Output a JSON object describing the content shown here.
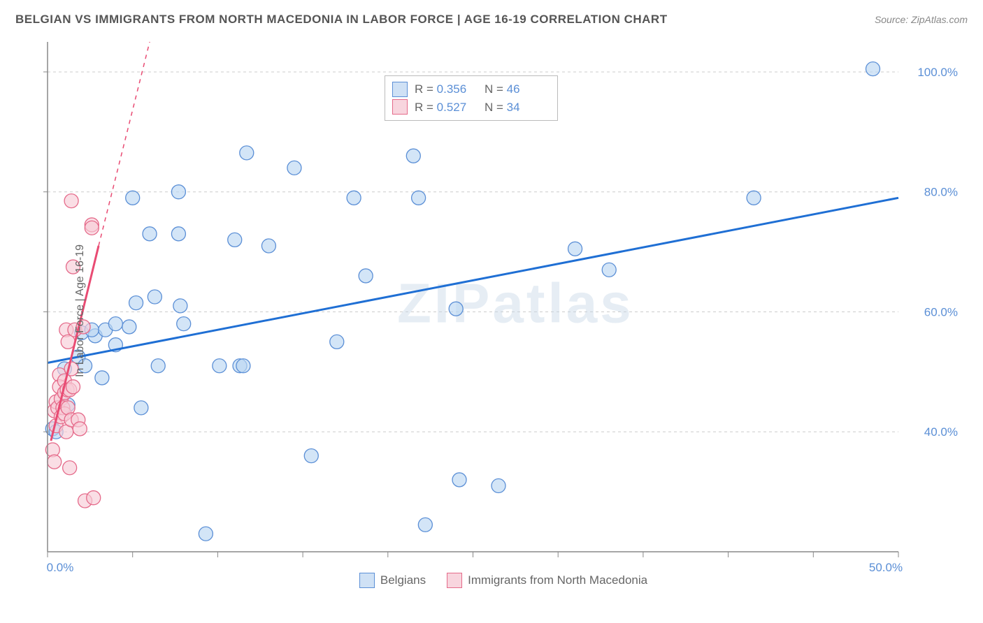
{
  "header": {
    "title": "BELGIAN VS IMMIGRANTS FROM NORTH MACEDONIA IN LABOR FORCE | AGE 16-19 CORRELATION CHART",
    "source_prefix": "Source: ",
    "source_name": "ZipAtlas.com"
  },
  "axes": {
    "ylabel": "In Labor Force | Age 16-19",
    "xlim": [
      0,
      50
    ],
    "ylim": [
      20,
      105
    ],
    "xticks": [
      0,
      5,
      10,
      15,
      20,
      25,
      30,
      35,
      40,
      45,
      50
    ],
    "xtick_labels": {
      "0": "0.0%",
      "50": "50.0%"
    },
    "yticks": [
      40,
      60,
      80,
      100
    ],
    "ytick_labels": {
      "40": "40.0%",
      "60": "60.0%",
      "80": "80.0%",
      "100": "100.0%"
    },
    "grid_color": "#cccccc",
    "axis_color": "#888888",
    "tick_label_color": "#5b8fd6",
    "tick_label_fontsize": 17
  },
  "chart": {
    "type": "scatter",
    "background_color": "#ffffff",
    "marker_radius": 10,
    "watermark_text": "ZIPatlas",
    "series": [
      {
        "id": "belgians",
        "label": "Belgians",
        "color_fill": "#bcd7f2",
        "color_stroke": "#5b8fd6",
        "trend_color": "#1f6fd4",
        "R": 0.356,
        "N": 46,
        "points": [
          [
            0.3,
            40.5
          ],
          [
            0.5,
            40.0
          ],
          [
            1.0,
            50.5
          ],
          [
            1.2,
            44.5
          ],
          [
            1.8,
            52.5
          ],
          [
            2.2,
            51.0
          ],
          [
            2.0,
            56.5
          ],
          [
            2.8,
            56.0
          ],
          [
            2.6,
            57.0
          ],
          [
            3.2,
            49.0
          ],
          [
            3.4,
            57.0
          ],
          [
            4.0,
            54.5
          ],
          [
            4.0,
            58.0
          ],
          [
            4.8,
            57.5
          ],
          [
            5.0,
            79.0
          ],
          [
            5.2,
            61.5
          ],
          [
            5.5,
            44.0
          ],
          [
            6.0,
            73.0
          ],
          [
            6.3,
            62.5
          ],
          [
            6.5,
            51.0
          ],
          [
            7.7,
            80.0
          ],
          [
            7.7,
            73.0
          ],
          [
            7.8,
            61.0
          ],
          [
            8.0,
            58.0
          ],
          [
            10.1,
            51.0
          ],
          [
            9.3,
            23.0
          ],
          [
            11.0,
            72.0
          ],
          [
            11.3,
            51.0
          ],
          [
            11.5,
            51.0
          ],
          [
            11.7,
            86.5
          ],
          [
            13.0,
            71.0
          ],
          [
            14.5,
            84.0
          ],
          [
            15.5,
            36.0
          ],
          [
            17.0,
            55.0
          ],
          [
            18.0,
            79.0
          ],
          [
            18.7,
            66.0
          ],
          [
            21.5,
            86.0
          ],
          [
            21.8,
            79.0
          ],
          [
            22.2,
            24.5
          ],
          [
            24.0,
            60.5
          ],
          [
            24.2,
            32.0
          ],
          [
            26.5,
            31.0
          ],
          [
            31.0,
            70.5
          ],
          [
            33.0,
            67.0
          ],
          [
            41.5,
            79.0
          ],
          [
            48.5,
            100.5
          ]
        ],
        "trend": {
          "x1": 0,
          "y1": 51.5,
          "x2": 50,
          "y2": 79.0
        }
      },
      {
        "id": "nmacedonia",
        "label": "Immigrants from North Macedonia",
        "color_fill": "#f8cdd7",
        "color_stroke": "#e56a8a",
        "trend_color": "#e94b73",
        "R": 0.527,
        "N": 34,
        "points": [
          [
            0.3,
            37.0
          ],
          [
            0.4,
            35.0
          ],
          [
            0.4,
            43.5
          ],
          [
            0.5,
            41.0
          ],
          [
            0.5,
            45.0
          ],
          [
            0.6,
            44.0
          ],
          [
            0.7,
            49.5
          ],
          [
            0.7,
            47.5
          ],
          [
            0.8,
            42.5
          ],
          [
            0.8,
            45.5
          ],
          [
            0.9,
            44.0
          ],
          [
            1.0,
            48.5
          ],
          [
            1.0,
            43.0
          ],
          [
            1.0,
            46.5
          ],
          [
            1.1,
            57.0
          ],
          [
            1.1,
            40.0
          ],
          [
            1.15,
            47.0
          ],
          [
            1.2,
            44.0
          ],
          [
            1.2,
            55.0
          ],
          [
            1.3,
            34.0
          ],
          [
            1.3,
            47.0
          ],
          [
            1.4,
            42.0
          ],
          [
            1.4,
            50.5
          ],
          [
            1.5,
            67.5
          ],
          [
            1.5,
            47.5
          ],
          [
            1.6,
            57.0
          ],
          [
            1.4,
            78.5
          ],
          [
            1.8,
            42.0
          ],
          [
            1.9,
            40.5
          ],
          [
            2.1,
            57.5
          ],
          [
            2.6,
            74.5
          ],
          [
            2.6,
            74.0
          ],
          [
            2.2,
            28.5
          ],
          [
            2.7,
            29.0
          ]
        ],
        "trend": {
          "x1": 0.2,
          "y1": 38.5,
          "x2": 3.0,
          "y2": 71.0
        },
        "trend_ext": {
          "x1": 3.0,
          "y1": 71.0,
          "x2": 6.0,
          "y2": 105.0
        }
      }
    ]
  },
  "legend_top": {
    "rows": [
      {
        "swatch": "blue",
        "r_label": "R =",
        "r_value": "0.356",
        "n_label": "N =",
        "n_value": "46"
      },
      {
        "swatch": "pink",
        "r_label": "R =",
        "r_value": "0.527",
        "n_label": "N =",
        "n_value": "34"
      }
    ]
  },
  "legend_bottom": {
    "items": [
      {
        "swatch": "blue",
        "label": "Belgians"
      },
      {
        "swatch": "pink",
        "label": "Immigrants from North Macedonia"
      }
    ]
  }
}
